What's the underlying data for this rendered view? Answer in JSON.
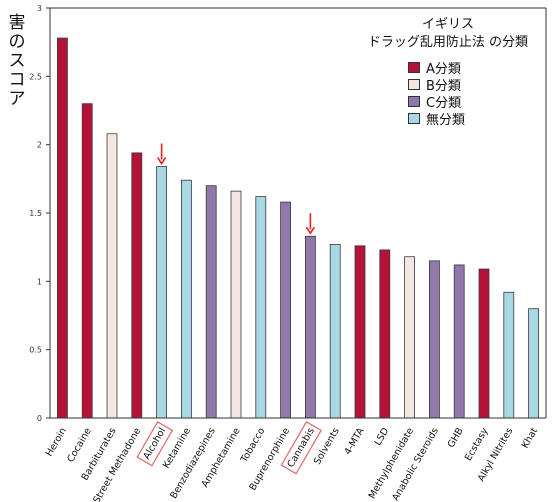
{
  "chart_data": {
    "type": "bar",
    "ylabel": "害のスコア",
    "ylim": [
      0,
      3
    ],
    "yticks": [
      "0",
      "0.5",
      "1",
      "1.5",
      "2",
      "2.5",
      "3"
    ],
    "legend_title": [
      "イギリス",
      "ドラッグ乱用防止法 の分類"
    ],
    "classes": [
      {
        "key": "A",
        "label": "A分類",
        "color": "#b5123a"
      },
      {
        "key": "B",
        "label": "B分類",
        "color": "#f4e7e2"
      },
      {
        "key": "C",
        "label": "C分類",
        "color": "#9178aa"
      },
      {
        "key": "N",
        "label": "無分類",
        "color": "#a8d8e4"
      }
    ],
    "categories": [
      "Heroin",
      "Cocaine",
      "Barbiturates",
      "Street Methadone",
      "Alcohol",
      "Ketamine",
      "Benzodiazepines",
      "Amphetamine",
      "Tobacco",
      "Buprenorphine",
      "Cannabis",
      "Solvents",
      "4-MTA",
      "LSD",
      "Methylphenidate",
      "Anabolic Steroids",
      "GHB",
      "Ecstasy",
      "Alkyl Nitrites",
      "Khat"
    ],
    "values": [
      2.78,
      2.3,
      2.08,
      1.94,
      1.84,
      1.74,
      1.7,
      1.66,
      1.62,
      1.58,
      1.33,
      1.27,
      1.26,
      1.23,
      1.18,
      1.15,
      1.12,
      1.09,
      0.92,
      0.8
    ],
    "class_of": [
      "A",
      "A",
      "B",
      "A",
      "N",
      "N",
      "C",
      "B",
      "N",
      "C",
      "C",
      "N",
      "A",
      "A",
      "B",
      "C",
      "C",
      "A",
      "N",
      "N"
    ],
    "highlighted": [
      "Alcohol",
      "Cannabis"
    ],
    "arrow_color": "#e02020",
    "highlight_color": "#e07070"
  }
}
